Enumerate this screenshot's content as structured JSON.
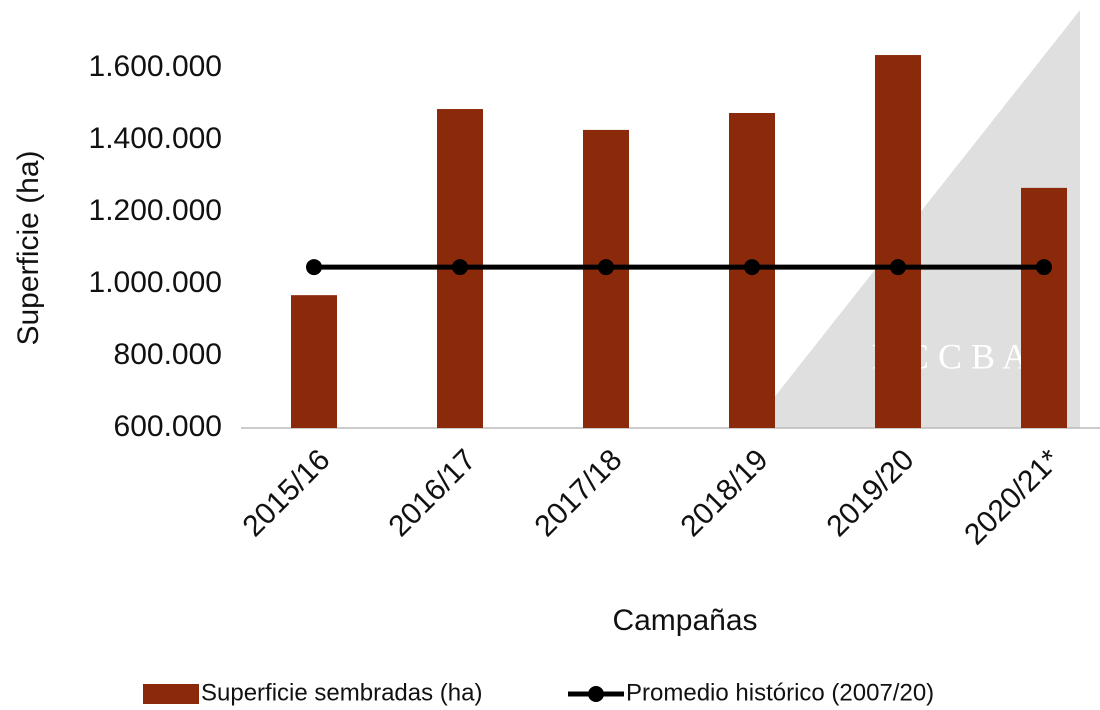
{
  "chart_data": {
    "type": "bar",
    "x_label": "Campañas",
    "y_label": "Superficie (ha)",
    "categories": [
      "2015/16",
      "2016/17",
      "2017/18",
      "2018/19",
      "2019/20",
      "2020/21*"
    ],
    "series": [
      {
        "name": "Superficie sembradas (ha)",
        "type": "bar",
        "color": "#8b2a0a",
        "values": [
          969000,
          1486000,
          1428000,
          1475000,
          1636000,
          1267000
        ]
      },
      {
        "name": "Promedio histórico (2007/20)",
        "type": "line",
        "color": "#000000",
        "values": [
          1047000,
          1047000,
          1047000,
          1047000,
          1047000,
          1047000
        ]
      }
    ],
    "ylim": [
      600000,
      1700000
    ],
    "yticks": [
      {
        "value": 600000,
        "label": "600.000"
      },
      {
        "value": 800000,
        "label": "800.000"
      },
      {
        "value": 1000000,
        "label": "1.000.000"
      },
      {
        "value": 1200000,
        "label": "1.200.000"
      },
      {
        "value": 1400000,
        "label": "1.400.000"
      },
      {
        "value": 1600000,
        "label": "1.600.000"
      }
    ],
    "watermark": "B C C B A",
    "grid": false,
    "legend": "bottom"
  }
}
